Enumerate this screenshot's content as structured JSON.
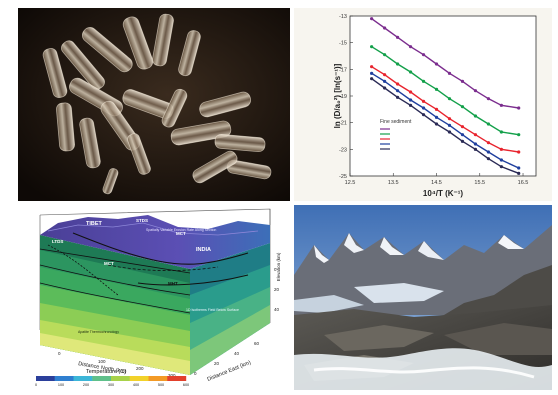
{
  "panels": [
    {
      "name": "crystal-photo"
    },
    {
      "name": "arrhenius-plot"
    },
    {
      "name": "thermal-model"
    },
    {
      "name": "mountain-photo"
    }
  ],
  "chart_data": {
    "type": "line",
    "xlabel": "10⁴/T (K⁻¹)",
    "ylabel": "ln (D/a₀²) [ln(s⁻¹)]",
    "xlim": [
      12.5,
      16.8
    ],
    "ylim": [
      -25,
      -13
    ],
    "xticks": [
      "12.5",
      "13.5",
      "14.5",
      "15.5",
      "16.5"
    ],
    "yticks": [
      "-13",
      "-15",
      "-17",
      "-19",
      "-21",
      "-23",
      "-25"
    ],
    "legend_title": "Fine sediment",
    "series": [
      {
        "color": "#7b2d8e",
        "x": [
          13.0,
          13.3,
          13.6,
          13.9,
          14.2,
          14.5,
          14.8,
          15.1,
          15.4,
          15.7,
          16.0,
          16.4
        ],
        "y": [
          -13.2,
          -13.9,
          -14.6,
          -15.3,
          -15.9,
          -16.6,
          -17.3,
          -17.9,
          -18.6,
          -19.2,
          -19.7,
          -19.9
        ]
      },
      {
        "color": "#13a04a",
        "x": [
          13.0,
          13.3,
          13.6,
          13.9,
          14.2,
          14.5,
          14.8,
          15.1,
          15.4,
          15.7,
          16.0,
          16.4
        ],
        "y": [
          -15.3,
          -15.9,
          -16.6,
          -17.2,
          -17.9,
          -18.5,
          -19.2,
          -19.8,
          -20.5,
          -21.1,
          -21.7,
          -21.9
        ]
      },
      {
        "color": "#e8242e",
        "x": [
          13.0,
          13.3,
          13.6,
          13.9,
          14.2,
          14.5,
          14.8,
          15.1,
          15.4,
          15.7,
          16.0,
          16.4
        ],
        "y": [
          -16.8,
          -17.4,
          -18.1,
          -18.7,
          -19.4,
          -20.0,
          -20.7,
          -21.3,
          -21.9,
          -22.5,
          -23.0,
          -23.2
        ]
      },
      {
        "color": "#1f3f9e",
        "x": [
          13.0,
          13.3,
          13.6,
          13.9,
          14.2,
          14.5,
          14.8,
          15.1,
          15.4,
          15.7,
          16.0,
          16.4
        ],
        "y": [
          -17.3,
          -17.9,
          -18.6,
          -19.3,
          -19.9,
          -20.6,
          -21.2,
          -21.9,
          -22.6,
          -23.2,
          -23.8,
          -24.4
        ]
      },
      {
        "color": "#2a2a55",
        "x": [
          13.0,
          13.3,
          13.6,
          13.9,
          14.2,
          14.5,
          14.8,
          15.1,
          15.4,
          15.7,
          16.0,
          16.4
        ],
        "y": [
          -17.7,
          -18.4,
          -19.1,
          -19.7,
          -20.4,
          -21.1,
          -21.7,
          -22.4,
          -23.0,
          -23.7,
          -24.3,
          -24.8
        ]
      }
    ]
  },
  "model": {
    "labels": {
      "tibet": "TIBET",
      "stds": "STDS",
      "ltds": "LTDS",
      "mct_1": "MCT",
      "mct_2": "MCT",
      "india": "INDIA",
      "mht": "MHT",
      "note_top": "Spatially Variable Erosion Rate Along Section",
      "note_right": "1D Isotherms Field Below Surface",
      "note_left": "Apatite Thermochronology"
    },
    "axes": {
      "north": "Distance North (km)",
      "east": "Distance East (km)",
      "elev": "Elevation (km)"
    },
    "ticks": {
      "north": [
        "0",
        "100",
        "200",
        "300"
      ],
      "east": [
        "0",
        "20",
        "40",
        "60"
      ],
      "elev": [
        "0",
        "20",
        "40"
      ]
    },
    "colorbar": {
      "title": "Temperature (C)",
      "ticks": [
        "0",
        "100",
        "200",
        "300",
        "400",
        "500",
        "600"
      ],
      "colors": [
        "#2b3f9b",
        "#2f7fd0",
        "#3cb6d8",
        "#5fc08a",
        "#a8d24a",
        "#f2d22a",
        "#f39a25",
        "#e2402b"
      ]
    }
  }
}
